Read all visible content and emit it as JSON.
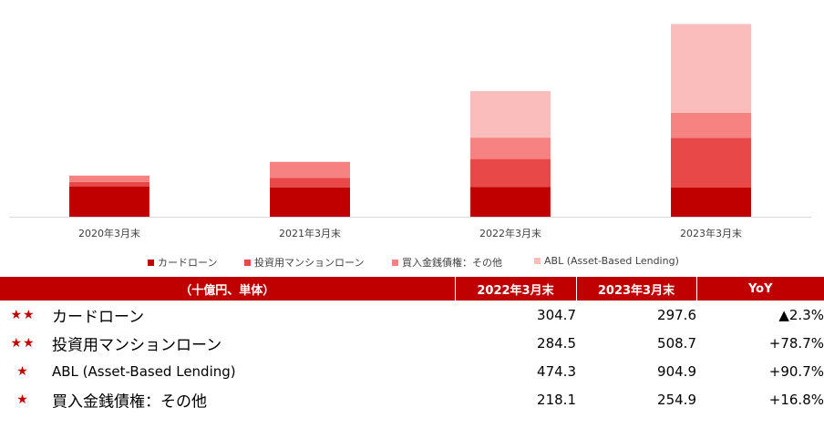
{
  "colors": {
    "card_loan": "#c00000",
    "investment_mansion_loan": "#e84848",
    "purchased_receivables_other": "#f78282",
    "abl": "#fbbcbc",
    "header_bg": "#c00000",
    "star": "#c00000"
  },
  "chart_data": {
    "type": "bar",
    "stacked": true,
    "categories": [
      "2020年3月末",
      "2021年3月末",
      "2022年3月末",
      "2023年3月末"
    ],
    "series": [
      {
        "name": "カードローン",
        "values": [
          310,
          300,
          304.7,
          297.6
        ]
      },
      {
        "name": "投資用マンションローン",
        "values": [
          45,
          95,
          284.5,
          508.7
        ]
      },
      {
        "name": "買入金銭債権：その他",
        "values": [
          65,
          165,
          218.1,
          254.9
        ]
      },
      {
        "name": "ABL (Asset-Based Lending)",
        "values": [
          0,
          0,
          474.3,
          904.9
        ]
      }
    ],
    "ylim": [
      0,
      2100
    ],
    "grid": false,
    "legend": "bottom"
  },
  "table": {
    "headers": [
      "（十億円、単体）",
      "2022年3月末",
      "2023年3月末",
      "YoY"
    ],
    "rows": [
      {
        "stars": "★★",
        "label": "カードローン",
        "v2022": "304.7",
        "v2023": "297.6",
        "yoy": "▲2.3%"
      },
      {
        "stars": "★★",
        "label": "投資用マンションローン",
        "v2022": "284.5",
        "v2023": "508.7",
        "yoy": "+78.7%"
      },
      {
        "stars": "★",
        "label": "ABL (Asset-Based Lending)",
        "v2022": "474.3",
        "v2023": "904.9",
        "yoy": "+90.7%"
      },
      {
        "stars": "★",
        "label": "買入金銭債権：その他",
        "v2022": "218.1",
        "v2023": "254.9",
        "yoy": "+16.8%"
      }
    ]
  }
}
